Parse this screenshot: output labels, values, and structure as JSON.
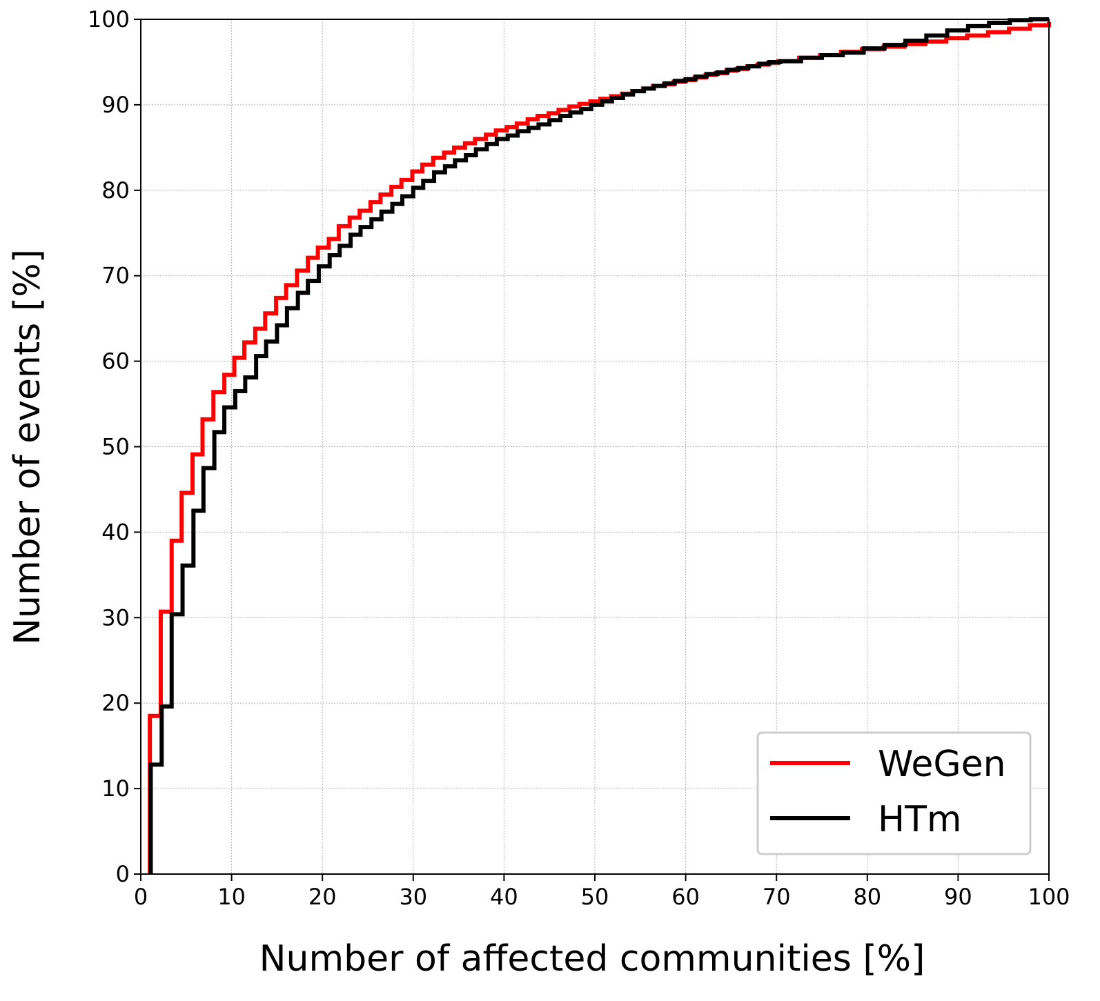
{
  "chart_data": {
    "type": "line",
    "step": true,
    "title": "",
    "xlabel": "Number of affected communities [%]",
    "ylabel": "Number of events [%]",
    "xlim": [
      0,
      100
    ],
    "ylim": [
      0,
      100
    ],
    "xticks": [
      0,
      10,
      20,
      30,
      40,
      50,
      60,
      70,
      80,
      90,
      100
    ],
    "yticks": [
      0,
      10,
      20,
      30,
      40,
      50,
      60,
      70,
      80,
      90,
      100
    ],
    "grid": true,
    "legend_position": "lower-right",
    "series": [
      {
        "name": "WeGen",
        "color": "#ff0000",
        "x": [
          1,
          2.2,
          3.4,
          4.5,
          5.7,
          6.8,
          8,
          9.2,
          10.3,
          11.4,
          12.6,
          13.7,
          14.9,
          16,
          17.2,
          18.4,
          19.5,
          20.7,
          21.8,
          23,
          24.1,
          25.3,
          26.4,
          27.6,
          28.7,
          29.9,
          31,
          32.2,
          33.4,
          34.5,
          35.7,
          36.8,
          38,
          39.1,
          40.3,
          41.4,
          42.6,
          43.7,
          44.9,
          46,
          47.2,
          48.3,
          49.5,
          50.6,
          51.8,
          53,
          54.1,
          55.3,
          56.4,
          57.6,
          58.7,
          59.9,
          61,
          62.2,
          63.3,
          64.5,
          65.6,
          66.8,
          67.9,
          69.1,
          70.2,
          72.5,
          74.8,
          77.1,
          79.4,
          81.8,
          84.1,
          86.4,
          88.7,
          91,
          93.3,
          95.6,
          97.9,
          100
        ],
        "values": [
          18.5,
          30.7,
          39,
          44.6,
          49.1,
          53.2,
          56.4,
          58.4,
          60.4,
          62.2,
          63.8,
          65.6,
          67.4,
          68.9,
          70.6,
          72.1,
          73.3,
          74.3,
          75.8,
          76.8,
          77.6,
          78.6,
          79.5,
          80.4,
          81.2,
          82.2,
          83,
          83.8,
          84.4,
          85,
          85.5,
          86,
          86.5,
          87,
          87.4,
          87.8,
          88.3,
          88.7,
          89,
          89.4,
          89.8,
          90.1,
          90.4,
          90.7,
          91,
          91.3,
          91.6,
          91.9,
          92.2,
          92.4,
          92.7,
          92.9,
          93.2,
          93.5,
          93.7,
          94,
          94.2,
          94.5,
          94.7,
          94.9,
          95.1,
          95.5,
          95.8,
          96.2,
          96.5,
          96.8,
          97.1,
          97.4,
          97.8,
          98.1,
          98.5,
          98.9,
          99.3,
          99.7
        ]
      },
      {
        "name": "HTm",
        "color": "#000000",
        "x": [
          1.1,
          2.3,
          3.4,
          4.6,
          5.8,
          6.9,
          8.1,
          9.2,
          10.4,
          11.5,
          12.7,
          13.8,
          15,
          16.1,
          17.3,
          18.4,
          19.6,
          20.8,
          21.9,
          23.1,
          24.2,
          25.4,
          26.5,
          27.7,
          28.8,
          30,
          31.1,
          32.3,
          33.5,
          34.6,
          35.8,
          36.9,
          38.1,
          39.2,
          40.4,
          41.5,
          42.7,
          43.8,
          45,
          46.2,
          47.3,
          48.5,
          49.6,
          50.8,
          51.9,
          53.1,
          54.2,
          55.4,
          56.5,
          57.7,
          58.8,
          60,
          61.1,
          62.3,
          63.5,
          64.6,
          65.8,
          66.9,
          68.1,
          69.2,
          70.4,
          72.7,
          75,
          77.3,
          79.6,
          81.9,
          84.2,
          86.5,
          88.8,
          91.1,
          93.4,
          95.7,
          98,
          100
        ],
        "values": [
          12.8,
          19.6,
          30.4,
          36.1,
          42.5,
          47.5,
          51.7,
          54.6,
          56.5,
          58.1,
          60.6,
          62.3,
          64.2,
          66.2,
          68,
          69.4,
          71.1,
          72.4,
          73.5,
          74.8,
          75.7,
          76.6,
          77.5,
          78.4,
          79.3,
          80.3,
          81.1,
          82.1,
          82.8,
          83.5,
          84.1,
          84.8,
          85.4,
          86,
          86.4,
          86.9,
          87.3,
          87.7,
          88.2,
          88.7,
          89.1,
          89.5,
          90,
          90.4,
          90.8,
          91.2,
          91.6,
          91.9,
          92.2,
          92.5,
          92.8,
          93,
          93.3,
          93.6,
          93.8,
          94.1,
          94.3,
          94.5,
          94.8,
          95,
          95.1,
          95.5,
          95.8,
          96.1,
          96.6,
          97,
          97.5,
          98.1,
          98.7,
          99.2,
          99.6,
          99.9,
          100,
          100
        ]
      }
    ]
  }
}
